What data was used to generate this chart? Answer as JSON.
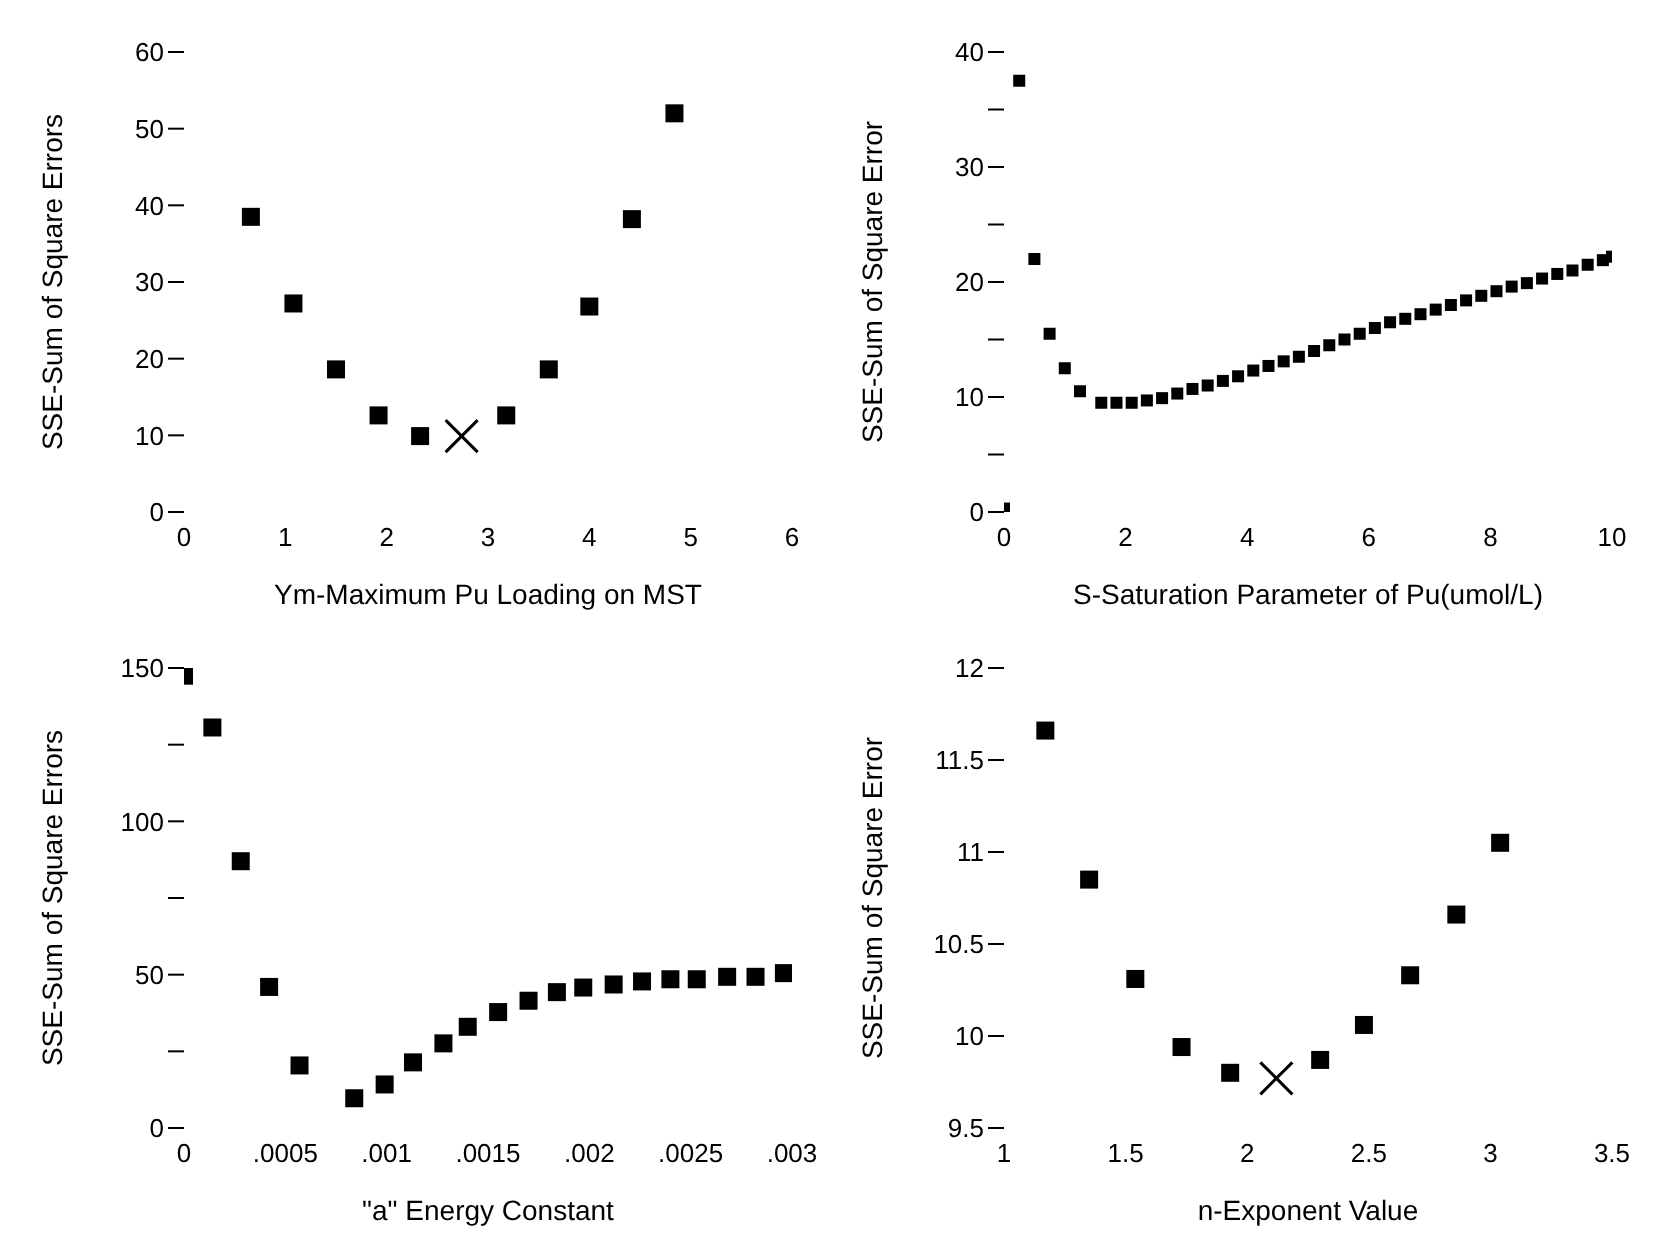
{
  "chart_data": [
    {
      "type": "scatter",
      "xlabel": "Ym-Maximum Pu Loading on MST",
      "ylabel": "SSE-Sum of Square Errors",
      "xlim": [
        0,
        6
      ],
      "xticks": [
        0,
        1,
        2,
        3,
        4,
        5,
        6
      ],
      "ylim": [
        0,
        60
      ],
      "yticks": [
        0,
        10,
        20,
        30,
        40,
        50,
        60
      ],
      "grid": false,
      "legend": false,
      "series": [
        {
          "color": "#000000",
          "marker": "square",
          "x": [
            0.66,
            1.08,
            1.5,
            1.92,
            2.33,
            3.18,
            3.6,
            4.0,
            4.42,
            4.84
          ],
          "values": [
            38.5,
            27.2,
            18.6,
            12.6,
            9.9,
            12.6,
            18.6,
            26.8,
            38.2,
            52
          ]
        },
        {
          "color": "#000000",
          "marker": "cross",
          "x": [
            2.74
          ],
          "values": [
            9.9
          ]
        }
      ]
    },
    {
      "type": "scatter",
      "xlabel": "S-Saturation Parameter of Pu(umol/L)",
      "ylabel": "SSE-Sum of Square Error",
      "xlim": [
        0,
        10
      ],
      "xticks": [
        0,
        2,
        4,
        6,
        8,
        10
      ],
      "ylim": [
        0,
        40
      ],
      "yticks": [
        0,
        {
          "value": 5,
          "label": null
        },
        10,
        {
          "value": 15,
          "label": null
        },
        20,
        {
          "value": 25,
          "label": null
        },
        30,
        {
          "value": 35,
          "label": null
        },
        40
      ],
      "grid": false,
      "legend": false,
      "series": [
        {
          "color": "#000000",
          "marker": "square",
          "x": [
            0,
            0.25,
            0.5,
            0.75,
            1.0,
            1.25,
            1.6,
            1.85,
            2.1,
            2.35,
            2.6,
            2.85,
            3.1,
            3.35,
            3.6,
            3.85,
            4.1,
            4.35,
            4.6,
            4.85,
            5.1,
            5.35,
            5.6,
            5.85,
            6.1,
            6.35,
            6.6,
            6.85,
            7.1,
            7.35,
            7.6,
            7.85,
            8.1,
            8.35,
            8.6,
            8.85,
            9.1,
            9.35,
            9.6,
            9.85,
            10.0
          ],
          "values": [
            0.3,
            37.5,
            22,
            15.5,
            12.5,
            10.5,
            9.5,
            9.5,
            9.5,
            9.7,
            9.9,
            10.3,
            10.7,
            11.0,
            11.4,
            11.8,
            12.3,
            12.7,
            13.1,
            13.5,
            14.0,
            14.5,
            15.0,
            15.5,
            16.0,
            16.5,
            16.8,
            17.2,
            17.6,
            18.0,
            18.4,
            18.8,
            19.2,
            19.6,
            19.9,
            20.3,
            20.7,
            21.0,
            21.5,
            21.9,
            22.2
          ]
        }
      ]
    },
    {
      "type": "scatter",
      "xlabel": "\"a\" Energy Constant",
      "ylabel": "SSE-Sum of Square Errors",
      "xlim": [
        0,
        0.003
      ],
      "xticks": [
        0,
        {
          "value": 0.0005,
          "label": ".0005"
        },
        {
          "value": 0.001,
          "label": ".001"
        },
        {
          "value": 0.0015,
          "label": ".0015"
        },
        {
          "value": 0.002,
          "label": ".002"
        },
        {
          "value": 0.0025,
          "label": ".0025"
        },
        {
          "value": 0.003,
          "label": ".003"
        }
      ],
      "ylim": [
        0,
        150
      ],
      "yticks": [
        0,
        {
          "value": 25,
          "label": null
        },
        50,
        {
          "value": 75,
          "label": null
        },
        100,
        {
          "value": 125,
          "label": null
        },
        150
      ],
      "grid": false,
      "legend": false,
      "series": [
        {
          "color": "#000000",
          "marker": "square",
          "x": [
            0,
            0.00014,
            0.00028,
            0.00042,
            0.00057,
            0.00084,
            0.00099,
            0.00113,
            0.00128,
            0.0014,
            0.00155,
            0.0017,
            0.00184,
            0.00197,
            0.00212,
            0.00226,
            0.0024,
            0.00253,
            0.00268,
            0.00282,
            0.00296
          ],
          "values": [
            147.5,
            130.6,
            87,
            46,
            20.4,
            9.7,
            14.2,
            21.4,
            27.6,
            33,
            37.8,
            41.5,
            44.3,
            45.8,
            46.8,
            47.8,
            48.5,
            48.5,
            49.3,
            49.3,
            50.5
          ]
        }
      ]
    },
    {
      "type": "scatter",
      "xlabel": "n-Exponent Value",
      "ylabel": "SSE-Sum of Square Error",
      "xlim": [
        1,
        3.5
      ],
      "xticks": [
        1,
        1.5,
        2,
        2.5,
        3,
        3.5
      ],
      "ylim": [
        9.5,
        12
      ],
      "yticks": [
        9.5,
        10,
        10.5,
        11,
        11.5,
        12
      ],
      "grid": false,
      "legend": false,
      "series": [
        {
          "color": "#000000",
          "marker": "square",
          "x": [
            1.17,
            1.35,
            1.54,
            1.73,
            1.93,
            2.3,
            2.48,
            2.67,
            2.86,
            3.04
          ],
          "values": [
            11.66,
            10.85,
            10.31,
            9.94,
            9.8,
            9.87,
            10.06,
            10.33,
            10.66,
            11.05
          ]
        },
        {
          "color": "#000000",
          "marker": "cross",
          "x": [
            2.12
          ],
          "values": [
            9.77
          ]
        }
      ]
    }
  ]
}
